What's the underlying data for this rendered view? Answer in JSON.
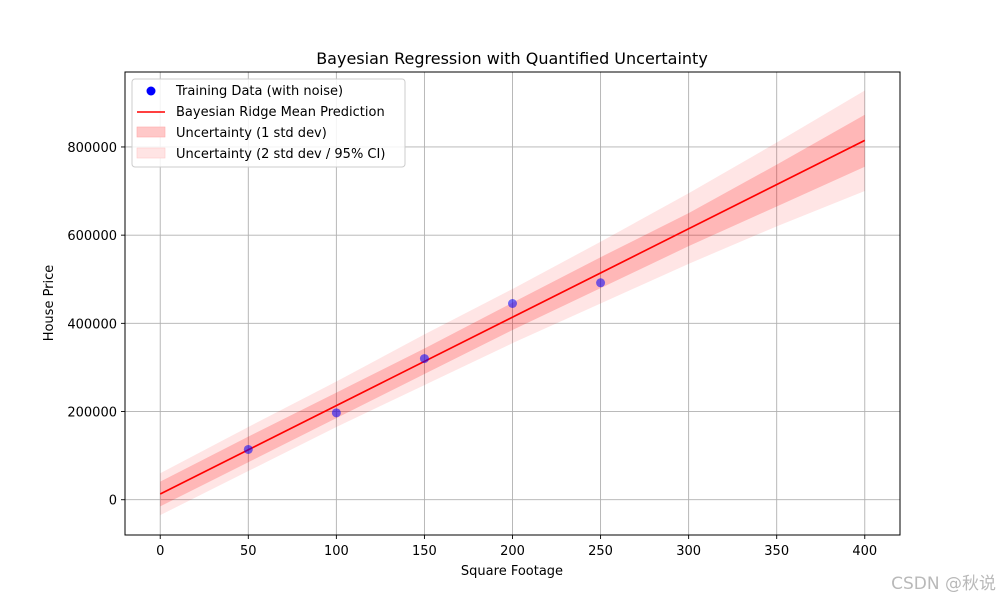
{
  "chart_data": {
    "type": "scatter",
    "title": "Bayesian Regression with Quantified Uncertainty",
    "xlabel": "Square Footage",
    "ylabel": "House Price",
    "xlim": [
      -20,
      420
    ],
    "ylim": [
      -80000,
      970000
    ],
    "xticks": [
      0,
      50,
      100,
      150,
      200,
      250,
      300,
      350,
      400
    ],
    "yticks": [
      0,
      200000,
      400000,
      600000,
      800000
    ],
    "grid": true,
    "legend_position": "top-left",
    "training_points": {
      "name": "Training Data (with noise)",
      "color": "#0000ff",
      "x": [
        50,
        100,
        150,
        200,
        250
      ],
      "y": [
        114000,
        197000,
        320000,
        445000,
        492000
      ]
    },
    "mean_prediction": {
      "name": "Bayesian Ridge Mean Prediction",
      "color": "#ff0000",
      "x": [
        0,
        400
      ],
      "y": [
        13000,
        815000
      ]
    },
    "band_1std": {
      "name": "Uncertainty (1 std dev)",
      "color": "#ff0000",
      "opacity": 0.2,
      "x": [
        0,
        50,
        100,
        150,
        200,
        250,
        300,
        350,
        400
      ],
      "lower": [
        -15000,
        85000,
        185000,
        285000,
        385000,
        480000,
        575000,
        665000,
        755000
      ],
      "upper": [
        41000,
        143000,
        243000,
        343000,
        447000,
        550000,
        650000,
        760000,
        873000
      ]
    },
    "band_2std": {
      "name": "Uncertainty (2 std dev / 95% CI)",
      "color": "#ff0000",
      "opacity": 0.1,
      "x": [
        0,
        50,
        100,
        150,
        200,
        250,
        300,
        350,
        400
      ],
      "lower": [
        -35000,
        65000,
        165000,
        260000,
        355000,
        445000,
        535000,
        620000,
        700000
      ],
      "upper": [
        60000,
        165000,
        268000,
        375000,
        478000,
        585000,
        695000,
        810000,
        928000
      ]
    }
  },
  "watermark": "CSDN @秋说"
}
